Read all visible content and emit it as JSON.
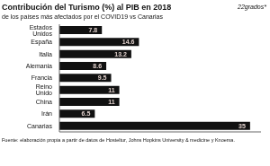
{
  "chart_data": {
    "type": "bar",
    "orientation": "horizontal",
    "title": "Contribución del Turismo (%) al PIB en 2018",
    "subtitle": "de los países más afectados por el COVID19 vs Canarias",
    "annotations": [
      "22grados*",
      "Fuente: elaboración propia a partir de datos de Hosteltur, Johns Hopkins University & medicine y Knoema."
    ],
    "categories": [
      "Estados Unidos",
      "España",
      "Italia",
      "Alemania",
      "Francia",
      "Reino Unido",
      "China",
      "Irán",
      "Canarias"
    ],
    "values": [
      7.8,
      14.6,
      13.2,
      8.6,
      9.5,
      11,
      11,
      6.5,
      35
    ],
    "color": "#111111",
    "xlim": [
      0,
      37
    ],
    "grid": false,
    "data_labels": true,
    "tick_labels": "y"
  }
}
